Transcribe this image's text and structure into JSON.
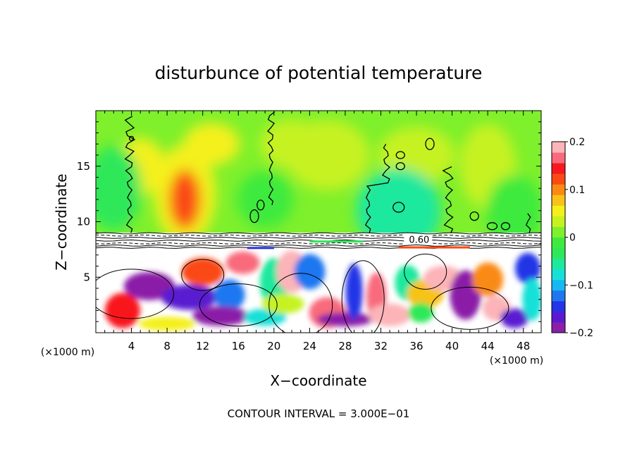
{
  "chart_data": {
    "type": "heatmap",
    "title": "disturbunce of potential temperature",
    "xlabel": "X−coordinate",
    "ylabel": "Z−coordinate",
    "x_unit_left": "(×1000 m)",
    "x_unit_right": "(×1000 m)",
    "footer": "CONTOUR INTERVAL = 3.000E−01",
    "xlim": [
      0,
      50
    ],
    "ylim": [
      0,
      20
    ],
    "x_ticks": [
      4,
      8,
      12,
      16,
      20,
      24,
      28,
      32,
      36,
      40,
      44,
      48
    ],
    "y_ticks": [
      5,
      10,
      15
    ],
    "contour_label": "0.60",
    "colorbar": {
      "min": -0.2,
      "max": 0.2,
      "tick_values": [
        0.2,
        0.1,
        0,
        -0.1,
        -0.2
      ],
      "tick_labels": [
        "0.2",
        "0.1",
        "0",
        "−0.1",
        "−0.2"
      ],
      "colors": [
        "#8b1fa8",
        "#5a1bd0",
        "#2434e6",
        "#1f77f0",
        "#15b8f0",
        "#17e0d8",
        "#1ee89e",
        "#2fe85a",
        "#3eea3e",
        "#7ef02c",
        "#c6f222",
        "#f4f01a",
        "#f8c218",
        "#fa8a12",
        "#fa4a14",
        "#f8181e",
        "#f86a7c",
        "#fcb4b8"
      ]
    },
    "upper_layer": {
      "z_range": [
        9,
        20
      ],
      "dominant_value": 0.0,
      "peak_value": 0.12,
      "peak_x": 10,
      "peak_z": 12.5
    },
    "inversion_band_z": [
      7.5,
      9
    ],
    "lower_layer": {
      "z_range": [
        0,
        7.5
      ],
      "value_range": [
        -0.2,
        0.2
      ]
    }
  }
}
